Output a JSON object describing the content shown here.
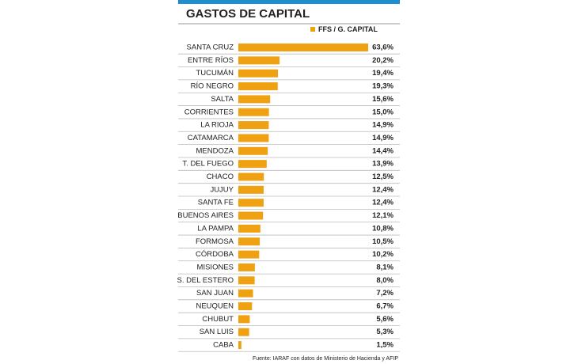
{
  "chart_data": {
    "type": "hbar",
    "title": "GASTOS DE CAPITAL",
    "categories": [
      "SANTA CRUZ",
      "ENTRE RÍOS",
      "TUCUMÁN",
      "RÍO NEGRO",
      "SALTA",
      "CORRIENTES",
      "LA RIOJA",
      "CATAMARCA",
      "MENDOZA",
      "T. DEL FUEGO",
      "CHACO",
      "JUJUY",
      "SANTA FE",
      "BUENOS AIRES",
      "LA PAMPA",
      "FORMOSA",
      "CÓRDOBA",
      "MISIONES",
      "S. DEL ESTERO",
      "SAN JUAN",
      "NEUQUEN",
      "CHUBUT",
      "SAN LUIS",
      "CABA"
    ],
    "series": [
      {
        "name": "FFS / G. CAPITAL",
        "color": "#f0a112",
        "values": [
          63.6,
          20.2,
          19.4,
          19.3,
          15.6,
          15.0,
          14.9,
          14.9,
          14.4,
          13.9,
          12.5,
          12.4,
          12.4,
          12.1,
          10.8,
          10.5,
          10.2,
          8.1,
          8.0,
          7.2,
          6.7,
          5.6,
          5.3,
          1.5
        ],
        "value_labels": [
          "63,6%",
          "20,2%",
          "19,4%",
          "19,3%",
          "15,6%",
          "15,0%",
          "14,9%",
          "14,9%",
          "14,4%",
          "13,9%",
          "12,5%",
          "12,4%",
          "12,4%",
          "12,1%",
          "10,8%",
          "10,5%",
          "10,2%",
          "8,1%",
          "8,0%",
          "7,2%",
          "6,7%",
          "5,6%",
          "5,3%",
          "1,5%"
        ]
      }
    ],
    "source": "Fuente: IARAF con datos de Ministerio de Hacienda y AFIP"
  }
}
